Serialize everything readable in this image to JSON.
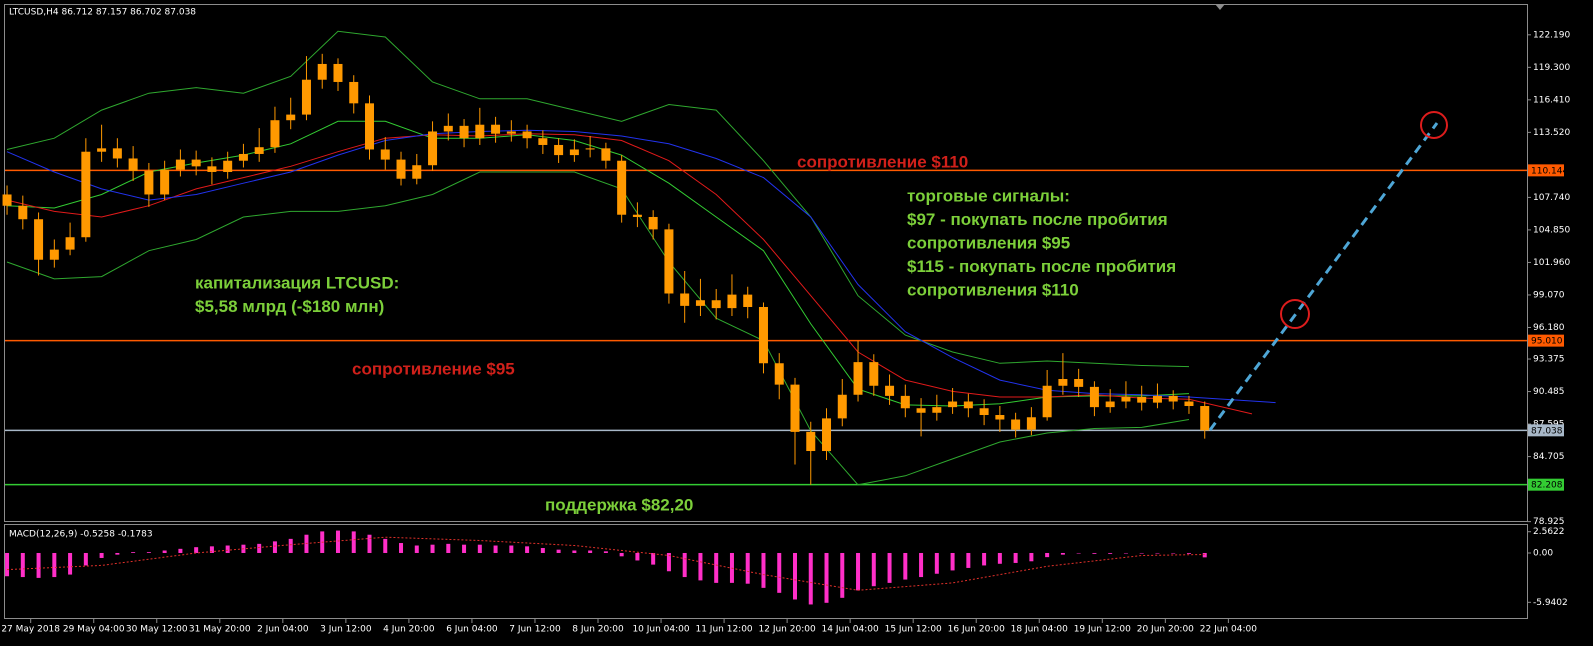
{
  "chart_data": [
    {
      "type": "candlestick",
      "title": "LTCUSD,H4  86.712 87.157 86.702 87.038",
      "color": "#ff9900",
      "open": [
        108.0,
        107,
        105.8,
        102.2,
        103.1,
        104.2,
        111.8,
        112.1,
        111.2,
        110.1,
        108.0,
        110.2,
        111.1,
        110.5,
        110.0,
        111.0,
        111.6,
        112.2,
        114.6,
        115.1,
        118.2,
        119.6,
        118.0,
        116.1,
        112.0,
        111.1,
        109.4,
        110.6,
        113.6,
        114.1,
        113.0,
        114.2,
        113.4,
        113.6,
        113.0,
        112.4,
        111.5,
        112.0,
        112.1,
        111.0,
        106.2,
        106.0,
        104.9,
        99.2,
        98.1,
        98.6,
        97.9,
        99.1,
        98.0,
        93.0,
        91.1,
        86.9,
        85.2,
        88.1,
        90.2,
        93.1,
        91.0,
        90.1,
        89.0,
        88.6,
        89.1,
        89.6,
        89.0,
        88.4,
        88.0,
        87.1,
        88.2,
        91.0,
        91.6,
        90.9,
        89.1,
        89.6,
        90.0,
        89.5,
        90.1,
        89.6,
        89.2
      ],
      "high": [
        108.8,
        107.9,
        106.4,
        104.0,
        105.5,
        113.0,
        114.2,
        113.0,
        112.3,
        110.8,
        111.0,
        112.0,
        111.9,
        111.3,
        111.8,
        112.5,
        113.9,
        115.8,
        116.6,
        120.3,
        120.5,
        120.1,
        118.6,
        116.8,
        113.1,
        111.8,
        111.6,
        114.5,
        115.2,
        114.7,
        115.7,
        114.9,
        114.6,
        114.2,
        113.7,
        113.0,
        112.9,
        113.2,
        112.6,
        111.5,
        107.3,
        106.6,
        105.4,
        101.2,
        100.5,
        99.6,
        100.9,
        99.8,
        98.4,
        93.9,
        91.7,
        87.8,
        89.0,
        91.6,
        95.0,
        93.8,
        92.0,
        91.1,
        89.9,
        90.2,
        90.8,
        90.3,
        89.8,
        89.2,
        88.6,
        89.1,
        92.4,
        93.9,
        92.5,
        91.4,
        90.7,
        91.4,
        91.0,
        91.2,
        90.6,
        90.1,
        89.6
      ],
      "low": [
        106.2,
        104.9,
        100.8,
        101.5,
        102.6,
        103.8,
        110.9,
        110.4,
        109.2,
        106.9,
        107.5,
        109.6,
        109.7,
        108.9,
        109.4,
        110.4,
        110.9,
        111.7,
        113.8,
        114.6,
        117.4,
        117.2,
        115.2,
        111.1,
        110.2,
        108.8,
        108.9,
        110.1,
        112.8,
        112.2,
        112.4,
        112.6,
        112.7,
        112.1,
        111.6,
        110.8,
        110.9,
        111.3,
        110.3,
        105.5,
        105.1,
        104.0,
        98.3,
        96.6,
        97.2,
        96.9,
        97.2,
        97.0,
        92.1,
        89.8,
        84.0,
        82.2,
        84.4,
        87.4,
        89.6,
        90.1,
        89.3,
        88.2,
        86.5,
        87.9,
        88.5,
        88.2,
        87.5,
        86.9,
        86.4,
        86.6,
        87.9,
        90.2,
        90.0,
        88.3,
        88.6,
        89.0,
        88.8,
        89.0,
        88.9,
        88.5,
        86.3
      ],
      "close": [
        107,
        105.8,
        102.2,
        103.1,
        104.2,
        111.8,
        112.1,
        111.2,
        110.1,
        108.0,
        110.2,
        111.1,
        110.5,
        110.0,
        111.0,
        111.6,
        112.2,
        114.6,
        115.1,
        118.2,
        119.6,
        118.0,
        116.1,
        112.0,
        111.1,
        109.4,
        110.6,
        113.6,
        114.1,
        113.0,
        114.2,
        113.4,
        113.6,
        113.0,
        112.4,
        111.5,
        112.0,
        112.1,
        111.0,
        106.2,
        106.0,
        104.9,
        99.2,
        98.1,
        98.6,
        97.9,
        99.1,
        98.0,
        93.0,
        91.1,
        86.9,
        85.2,
        88.1,
        90.2,
        93.1,
        91.0,
        90.1,
        89.0,
        88.6,
        89.1,
        89.6,
        89.0,
        88.4,
        88.0,
        87.1,
        88.2,
        91.0,
        91.6,
        90.9,
        89.1,
        89.6,
        90.0,
        89.5,
        90.1,
        89.6,
        89.2,
        87.038
      ],
      "xlim": [
        -0.13,
        96.45
      ],
      "xticks": [
        {
          "value": 1.5,
          "label": "27 May 2018"
        },
        {
          "value": 5.5,
          "label": "29 May 04:00"
        },
        {
          "value": 9.5,
          "label": "30 May 12:00"
        },
        {
          "value": 13.5,
          "label": "31 May 20:00"
        },
        {
          "value": 17.5,
          "label": "2 Jun 04:00"
        },
        {
          "value": 21.5,
          "label": "3 Jun 12:00"
        },
        {
          "value": 25.5,
          "label": "4 Jun 20:00"
        },
        {
          "value": 29.5,
          "label": "6 Jun 04:00"
        },
        {
          "value": 33.5,
          "label": "7 Jun 12:00"
        },
        {
          "value": 37.5,
          "label": "8 Jun 20:00"
        },
        {
          "value": 41.5,
          "label": "10 Jun 04:00"
        },
        {
          "value": 45.5,
          "label": "11 Jun 12:00"
        },
        {
          "value": 49.5,
          "label": "12 Jun 20:00"
        },
        {
          "value": 53.5,
          "label": "14 Jun 04:00"
        },
        {
          "value": 57.5,
          "label": "15 Jun 12:00"
        },
        {
          "value": 61.5,
          "label": "16 Jun 20:00"
        },
        {
          "value": 65.5,
          "label": "18 Jun 04:00"
        },
        {
          "value": 69.5,
          "label": "19 Jun 12:00"
        },
        {
          "value": 73.5,
          "label": "20 Jun 20:00"
        },
        {
          "value": 77.5,
          "label": "22 Jun 04:00"
        }
      ],
      "ylim": [
        78.98,
        124.84
      ],
      "yticks": [
        {
          "value": 122.19,
          "label": "122.190"
        },
        {
          "value": 119.3,
          "label": "119.300"
        },
        {
          "value": 116.41,
          "label": "116.410"
        },
        {
          "value": 113.52,
          "label": "113.520"
        },
        {
          "value": 107.74,
          "label": "107.740"
        },
        {
          "value": 104.85,
          "label": "104.850"
        },
        {
          "value": 101.96,
          "label": "101.960"
        },
        {
          "value": 99.07,
          "label": "99.070"
        },
        {
          "value": 96.18,
          "label": "96.180"
        },
        93.375,
        90.485,
        87.595,
        84.705,
        78.925
      ],
      "overlays": [
        {
          "color": "#2fa82f",
          "x": [
            0,
            3,
            6,
            9,
            12,
            15,
            18,
            21,
            24,
            27,
            30,
            33,
            36,
            39,
            42,
            45,
            48,
            51,
            54,
            57,
            60,
            63,
            66,
            69,
            72,
            75
          ],
          "values": [
            112,
            113,
            115.5,
            117,
            117.5,
            117,
            118.5,
            122.5,
            122,
            118,
            116.5,
            116.5,
            115.5,
            114.5,
            116,
            115.5,
            111,
            106,
            99,
            95.5,
            94,
            93,
            93.2,
            93,
            92.8,
            92.7
          ]
        },
        {
          "color": "#2fa82f",
          "x": [
            0,
            3,
            6,
            9,
            12,
            15,
            18,
            21,
            24,
            27,
            30,
            33,
            36,
            39,
            42,
            45,
            48,
            51,
            54,
            57,
            60,
            63,
            66,
            69,
            72,
            75
          ],
          "values": [
            102,
            100.5,
            100.7,
            103,
            104,
            106,
            106.5,
            106.5,
            107,
            108,
            110,
            110,
            110,
            108.5,
            102,
            97,
            95,
            87,
            82.2,
            83,
            84.5,
            86,
            86.8,
            87.2,
            87.3,
            88
          ]
        },
        {
          "color": "#33cc33",
          "x": [
            0,
            3,
            6,
            9,
            12,
            15,
            18,
            21,
            24,
            27,
            30,
            33,
            36,
            39,
            42,
            45,
            48,
            51,
            54,
            57,
            60,
            63,
            66,
            69,
            72,
            75
          ],
          "values": [
            107,
            106.8,
            108,
            110,
            110.8,
            111.5,
            112.5,
            114.5,
            114.5,
            113,
            113,
            113.3,
            112.8,
            111.5,
            109,
            106,
            103,
            96.5,
            90.7,
            89.3,
            89.2,
            89.4,
            90,
            90.1,
            90.1,
            90.3
          ]
        },
        {
          "color": "#e01a1a",
          "x": [
            0,
            3,
            6,
            9,
            12,
            15,
            18,
            21,
            24,
            27,
            30,
            33,
            36,
            39,
            42,
            45,
            48,
            51,
            54,
            57,
            60,
            63,
            66,
            69,
            72,
            75,
            79
          ],
          "values": [
            107.5,
            106.5,
            106,
            107,
            108.5,
            109.5,
            110.5,
            111.8,
            113,
            113.3,
            113.2,
            113.4,
            113.3,
            112.8,
            111,
            108,
            104,
            99,
            94,
            91.5,
            90.5,
            90,
            90,
            90.2,
            89.9,
            89.8,
            88.5
          ]
        },
        {
          "color": "#2233ee",
          "x": [
            0,
            3,
            6,
            9,
            12,
            15,
            18,
            21,
            24,
            27,
            30,
            33,
            36,
            39,
            42,
            45,
            48,
            51,
            54,
            57,
            60,
            63,
            66,
            69,
            72,
            75,
            80.5
          ],
          "values": [
            111.8,
            110,
            108.5,
            107.5,
            108,
            109,
            110,
            111.5,
            112.8,
            113.4,
            113.6,
            113.7,
            113.6,
            113.2,
            112.5,
            111.2,
            109.5,
            106,
            100,
            95.8,
            93.5,
            91.5,
            90.6,
            90.3,
            90.2,
            90.0,
            89.5
          ]
        }
      ],
      "levels": [
        {
          "value": 110.144,
          "label": "110.144",
          "color": "#ff5a00"
        },
        {
          "value": 95.01,
          "label": "95.010",
          "color": "#ff5a00"
        },
        {
          "value": 87.038,
          "label": "87.038",
          "color": "#a8b8c8"
        },
        {
          "value": 82.208,
          "label": "82.208",
          "color": "#33cc33"
        }
      ],
      "annotations": [
        {
          "lines": [
            "сопротивление $110"
          ],
          "color": "#d0201a"
        },
        {
          "lines": [
            "торговые сигналы:",
            "$97 - покупать после пробития",
            "сопротивления $95",
            "$115 - покупать после пробития",
            "сопротивления $110"
          ],
          "color": "#7ccf3a"
        },
        {
          "lines": [
            "капитализация LTCUSD:",
            "$5,58 млрд (-$180 млн)"
          ],
          "color": "#7ccf3a"
        },
        {
          "lines": [
            "сопротивление $95"
          ],
          "color": "#d0201a"
        },
        {
          "lines": [
            "поддержка $82,20"
          ],
          "color": "#7ccf3a"
        }
      ]
    },
    {
      "type": "macd",
      "title": "MACD(12,26,9) -0.5258 -0.1783",
      "color": "#ff2fc8",
      "values": [
        -2.8,
        -2.9,
        -3.0,
        -2.9,
        -2.6,
        -1.5,
        -0.6,
        -0.2,
        0.1,
        0.1,
        0.3,
        0.5,
        0.7,
        0.8,
        0.9,
        1.0,
        1.1,
        1.4,
        1.7,
        2.2,
        2.6,
        2.7,
        2.6,
        2.2,
        1.7,
        1.2,
        0.9,
        1.0,
        1.1,
        1.0,
        1.0,
        0.9,
        0.9,
        0.8,
        0.6,
        0.4,
        0.3,
        0.3,
        0.2,
        -0.4,
        -0.9,
        -1.4,
        -2.2,
        -2.9,
        -3.3,
        -3.6,
        -3.6,
        -3.7,
        -4.2,
        -4.8,
        -5.6,
        -6.2,
        -6.0,
        -5.4,
        -4.5,
        -4.0,
        -3.6,
        -3.2,
        -2.9,
        -2.5,
        -2.1,
        -1.8,
        -1.5,
        -1.3,
        -1.2,
        -1.0,
        -0.5,
        -0.2,
        0.0,
        -0.1,
        -0.1,
        0.0,
        0.0,
        0.0,
        0.0,
        -0.1,
        -0.5258
      ],
      "signal": {
        "color": "#e0302a",
        "x": [
          0,
          6,
          12,
          18,
          24,
          30,
          36,
          42,
          48,
          54,
          60,
          66,
          72,
          76
        ],
        "values": [
          -2.0,
          -1.5,
          0.0,
          1.0,
          1.9,
          1.5,
          0.9,
          -0.3,
          -2.6,
          -4.5,
          -3.6,
          -1.6,
          -0.3,
          -0.1783
        ]
      },
      "xlim": [
        -0.13,
        96.45
      ],
      "ylim": [
        -7.71,
        3.13
      ],
      "yticks": [
        2.5622,
        {
          "value": 0,
          "label": "0.00"
        },
        -5.9402
      ]
    }
  ]
}
